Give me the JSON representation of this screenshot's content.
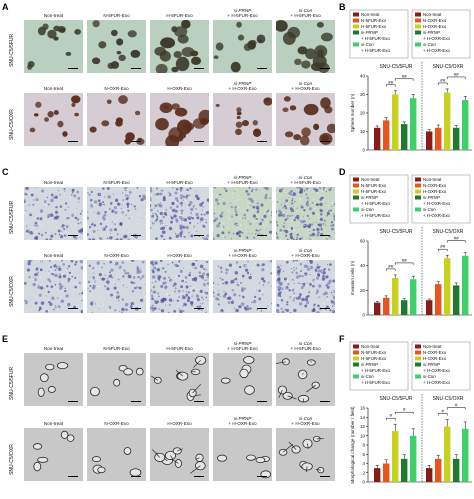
{
  "panels": {
    "A": {
      "letter": "A",
      "columns": [
        {
          "line1": "Non-treat",
          "line2": ""
        },
        {
          "line1": "N-5FUR-Exo",
          "line2": ""
        },
        {
          "line1": "H-5FUR-Exo",
          "line2": ""
        },
        {
          "line1": "si-PRNP",
          "line2": "+ H-5FUR-Exo"
        },
        {
          "line1": "si-Con",
          "line2": "+ H-5FUR-Exo"
        }
      ],
      "rows": [
        "SNU-C5/5FUR",
        "SNU-C5/OXR"
      ],
      "row2_columns": [
        {
          "line1": "Non-treat",
          "line2": ""
        },
        {
          "line1": "N-OXR-Exo",
          "line2": ""
        },
        {
          "line1": "H-OXR-Exo",
          "line2": ""
        },
        {
          "line1": "si-PRNP",
          "line2": "+ H-OXR-Exo"
        },
        {
          "line1": "si-Con",
          "line2": "+ H-OXR-Exo"
        }
      ]
    },
    "C": {
      "letter": "C",
      "columns": [
        {
          "line1": "Non-treat",
          "line2": ""
        },
        {
          "line1": "N-5FUR-Exo",
          "line2": ""
        },
        {
          "line1": "H-5FUR-Exo",
          "line2": ""
        },
        {
          "line1": "si-PRNP",
          "line2": "+ H-5FUR-Exo"
        },
        {
          "line1": "si-Con",
          "line2": "+ H-5FUR-Exo"
        }
      ],
      "rows": [
        "SNU-C5/5FUR",
        "SNU-C5/OXR"
      ],
      "row2_columns": [
        {
          "line1": "Non-treat",
          "line2": ""
        },
        {
          "line1": "N-OXR-Exo",
          "line2": ""
        },
        {
          "line1": "H-OXR-Exo",
          "line2": ""
        },
        {
          "line1": "si-PRNP",
          "line2": "+ H-OXR-Exo"
        },
        {
          "line1": "si-Con",
          "line2": "+ H-OXR-Exo"
        }
      ]
    },
    "E": {
      "letter": "E",
      "columns": [
        {
          "line1": "Non-treat",
          "line2": ""
        },
        {
          "line1": "N-5FUR-Exo",
          "line2": ""
        },
        {
          "line1": "H-5FUR-Exo",
          "line2": ""
        },
        {
          "line1": "si-PRNP",
          "line2": "+ H-5FUR-Exo"
        },
        {
          "line1": "si-Con",
          "line2": "+ H-5FUR-Exo"
        }
      ],
      "rows": [
        "SNU-C5/5FUR",
        "SNU-C5/OXR"
      ],
      "row2_columns": [
        {
          "line1": "Non-treat",
          "line2": ""
        },
        {
          "line1": "N-OXR-Exo",
          "line2": ""
        },
        {
          "line1": "H-OXR-Exo",
          "line2": ""
        },
        {
          "line1": "si-PRNP",
          "line2": "+ H-OXR-Exo"
        },
        {
          "line1": "si-Con",
          "line2": "+ H-OXR-Exo"
        }
      ]
    }
  },
  "colors": {
    "non_treat": "#8b1a1a",
    "normal_exo": "#e8541e",
    "hypoxic_exo": "#c8d21e",
    "si_prnp": "#1e7a2e",
    "si_con": "#3fd06a"
  },
  "chart_data": [
    {
      "panel": "B",
      "type": "bar",
      "ylabel": "Sphere number (n)",
      "ylim": [
        0,
        40
      ],
      "yticks": [
        0,
        10,
        20,
        30,
        40
      ],
      "legend_left": [
        "Non-treat",
        "N-5FUR-Exo",
        "H-5FUR-Exo",
        "si-PRNP",
        "+ H-5FUR-Exo",
        "si-Con",
        "+ H-5FUR-Exo"
      ],
      "legend_right": [
        "Non-treat",
        "N-OXR-Exo",
        "H-OXR-Exo",
        "si-PRNP",
        "+ H-OXR-Exo",
        "si-Con",
        "+ H-OXR-Exo"
      ],
      "groups": [
        {
          "name": "SNU-C5/5FUR",
          "values": [
            12,
            16,
            30,
            14,
            28
          ],
          "errors": [
            1,
            1.5,
            2,
            1.2,
            2
          ]
        },
        {
          "name": "SNU-C5/OXR",
          "values": [
            10,
            12,
            31,
            12,
            27
          ],
          "errors": [
            1,
            1.5,
            2,
            1.2,
            2
          ]
        }
      ],
      "annotations": [
        "##",
        "##",
        "##",
        "##"
      ]
    },
    {
      "panel": "D",
      "type": "bar",
      "ylabel": "Invasion cells (n)",
      "ylim": [
        0,
        60
      ],
      "yticks": [
        0,
        20,
        40,
        60
      ],
      "legend_left": [
        "Non-treat",
        "N-5FUR-Exo",
        "H-5FUR-Exo",
        "si-PRNP",
        "+ H-5FUR-Exo",
        "si-Con",
        "+ H-5FUR-Exo"
      ],
      "legend_right": [
        "Non-treat",
        "N-OXR-Exo",
        "H-OXR-Exo",
        "si-PRNP",
        "+ H-OXR-Exo",
        "si-Con",
        "+ H-OXR-Exo"
      ],
      "groups": [
        {
          "name": "SNU-C5/5FUR",
          "values": [
            10,
            14,
            30,
            12,
            29
          ],
          "errors": [
            1,
            1.5,
            2.5,
            1.2,
            2.5
          ]
        },
        {
          "name": "SNU-C5/OXR",
          "values": [
            12,
            25,
            46,
            24,
            48
          ],
          "errors": [
            1,
            2,
            2.5,
            2,
            2.5
          ]
        }
      ],
      "annotations": [
        "##",
        "##",
        "##",
        "##"
      ]
    },
    {
      "panel": "F",
      "type": "bar",
      "ylabel": "Morphological change (number / field)",
      "ylim": [
        0,
        16
      ],
      "yticks": [
        0,
        2,
        4,
        6,
        8,
        10,
        12,
        14,
        16
      ],
      "legend_left": [
        "Non-treat",
        "N-5FUR-Exo",
        "H-5FUR-Exo",
        "si-PRNP",
        "+ H-5FUR-Exo",
        "si-Con",
        "+ H-5FUR-Exo"
      ],
      "legend_right": [
        "Non-treat",
        "N-OXR-Exo",
        "H-OXR-Exo",
        "si-PRNP",
        "+ H-OXR-Exo",
        "si-Con",
        "+ H-OXR-Exo"
      ],
      "groups": [
        {
          "name": "SNU-C5/5FUR",
          "values": [
            3,
            4,
            11,
            5,
            10
          ],
          "errors": [
            0.6,
            0.8,
            1.5,
            0.9,
            1.5
          ]
        },
        {
          "name": "SNU-C5/OXR",
          "values": [
            3,
            5,
            12,
            5,
            11.5
          ],
          "errors": [
            0.6,
            0.8,
            1.5,
            0.9,
            1.5
          ]
        }
      ],
      "annotations": [
        "#",
        "#",
        "#",
        "#"
      ]
    }
  ]
}
